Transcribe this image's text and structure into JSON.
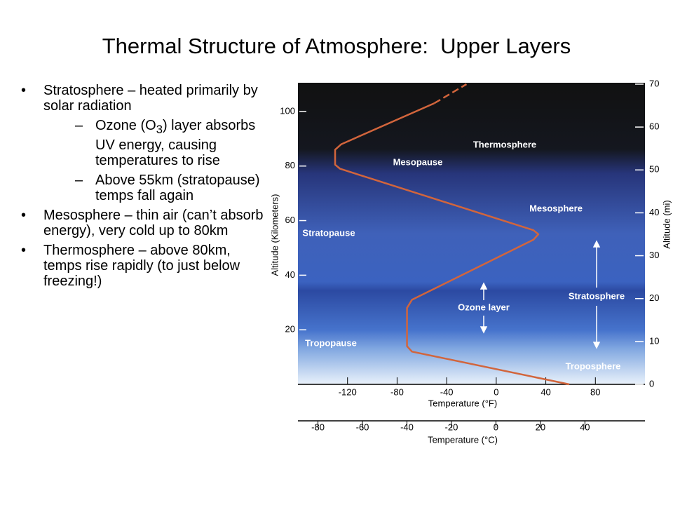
{
  "title": "Thermal Structure of Atmosphere:  Upper Layers",
  "bullets": [
    {
      "text": "Stratosphere – heated primarily by solar radiation",
      "subitems": [
        {
          "text_parts": [
            "Ozone (O",
            "3",
            ") layer absorbs UV energy, causing temperatures to rise"
          ]
        },
        {
          "text": "Above 55km (stratopause) temps fall again"
        }
      ]
    },
    {
      "text": "Mesosphere – thin air (can’t absorb energy), very cold up to 80km"
    },
    {
      "text": "Thermosphere – above 80km, temps rise rapidly (to just below freezing!)"
    }
  ],
  "chart_data": {
    "type": "line",
    "xlabel": "Temperature (°F)",
    "x2label": "Temperature (°C)",
    "ylabel": "Altitude (Kilometers)",
    "y2label": "Altitude (mi)",
    "xlim": [
      -160,
      120
    ],
    "xticks": [
      -120,
      -80,
      -40,
      0,
      40,
      80
    ],
    "x2lim": [
      -89,
      67
    ],
    "x2ticks": [
      -80,
      -60,
      -40,
      -20,
      0,
      20,
      40
    ],
    "ylim": [
      0,
      110
    ],
    "yticks": [
      20,
      40,
      60,
      80,
      100
    ],
    "y2lim": [
      0,
      70
    ],
    "y2ticks": [
      0,
      10,
      20,
      30,
      40,
      50,
      60,
      70
    ],
    "annotations": [
      "Thermosphere",
      "Mesopause",
      "Mesosphere",
      "Stratopause",
      "Stratosphere",
      "Ozone layer",
      "Tropopause",
      "Troposphere"
    ],
    "series": [
      {
        "color": "#d2653c",
        "x": [
          59,
          -68,
          -72,
          -72,
          -68,
          30,
          34,
          30,
          -126,
          -130,
          -130,
          -125,
          -50
        ],
        "values": [
          0,
          12,
          14,
          28,
          31,
          53,
          55,
          56.5,
          79,
          80.5,
          86,
          88,
          103
        ]
      },
      {
        "color": "#d2653c",
        "dashed": true,
        "x": [
          -50,
          -24
        ],
        "values": [
          103,
          110
        ]
      }
    ]
  }
}
